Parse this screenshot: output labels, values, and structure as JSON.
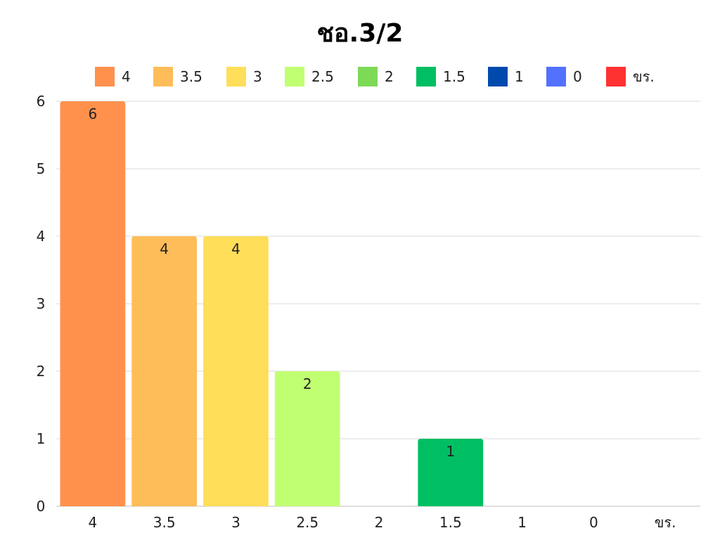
{
  "chart_data": {
    "type": "bar",
    "title": "ชอ.3/2",
    "categories": [
      "4",
      "3.5",
      "3",
      "2.5",
      "2",
      "1.5",
      "1",
      "0",
      "ขร."
    ],
    "values": [
      6,
      4,
      4,
      2,
      0,
      1,
      0,
      0,
      0
    ],
    "colors": [
      "#FF914D",
      "#FFBD59",
      "#FFDE59",
      "#C1FF72",
      "#7ED957",
      "#00BF63",
      "#004AAD",
      "#5271FF",
      "#FF3131"
    ],
    "legend": {
      "placement": "top",
      "entries": [
        "4",
        "3.5",
        "3",
        "2.5",
        "2",
        "1.5",
        "1",
        "0",
        "ขร."
      ]
    },
    "y_ticks": [
      "0",
      "1",
      "2",
      "3",
      "4",
      "5",
      "6"
    ],
    "ylim": [
      0,
      6
    ],
    "grid": true,
    "data_labels": true
  }
}
